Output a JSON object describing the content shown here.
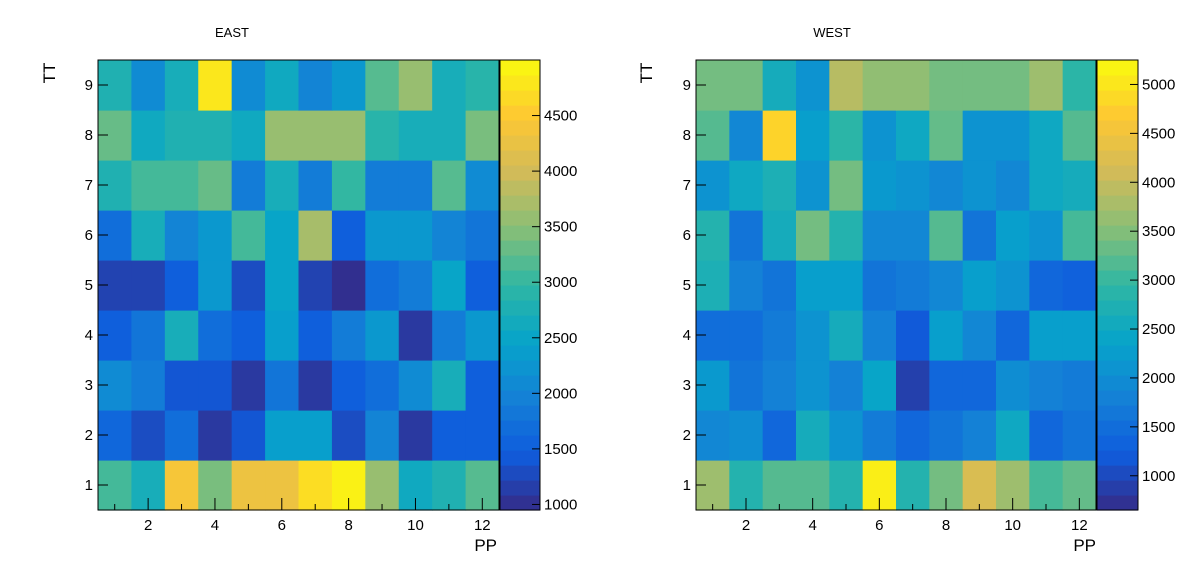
{
  "chart_data": [
    {
      "type": "heatmap",
      "title": "EAST",
      "xlabel": "PP",
      "ylabel": "TT",
      "xlim": [
        0.5,
        12.5
      ],
      "ylim": [
        0.5,
        9.5
      ],
      "x_ticks": [
        2,
        4,
        6,
        8,
        10,
        12
      ],
      "y_ticks": [
        1,
        2,
        3,
        4,
        5,
        6,
        7,
        8,
        9
      ],
      "x": [
        1,
        2,
        3,
        4,
        5,
        6,
        7,
        8,
        9,
        10,
        11,
        12
      ],
      "y": [
        1,
        2,
        3,
        4,
        5,
        6,
        7,
        8,
        9
      ],
      "colorbar": {
        "range": [
          950,
          5000
        ],
        "ticks": [
          1000,
          1500,
          2000,
          2500,
          3000,
          3500,
          4000,
          4500
        ]
      },
      "values": [
        [
          3100,
          2700,
          4400,
          3400,
          4300,
          4300,
          4700,
          4900,
          3600,
          2600,
          2800,
          3200
        ],
        [
          1600,
          1300,
          1700,
          1100,
          1400,
          2400,
          2400,
          1300,
          2000,
          1100,
          1500,
          1500
        ],
        [
          2100,
          1900,
          1400,
          1400,
          1100,
          1800,
          1100,
          1500,
          1700,
          2100,
          2700,
          1500
        ],
        [
          1500,
          1800,
          2700,
          1700,
          1500,
          2400,
          1500,
          1900,
          2300,
          1100,
          1900,
          2300
        ],
        [
          1200,
          1200,
          1500,
          2300,
          1300,
          2500,
          1200,
          1000,
          1700,
          1900,
          2500,
          1500
        ],
        [
          1700,
          2700,
          2000,
          2300,
          3100,
          2500,
          3700,
          1500,
          2300,
          2300,
          2000,
          1800
        ],
        [
          2800,
          3100,
          3100,
          3300,
          1900,
          2700,
          1900,
          3000,
          1900,
          1900,
          3200,
          2100
        ],
        [
          3300,
          2600,
          2800,
          2800,
          2600,
          3600,
          3600,
          3600,
          2900,
          2700,
          2700,
          3400
        ],
        [
          2800,
          2100,
          2700,
          4800,
          2100,
          2600,
          2000,
          2300,
          3200,
          3600,
          2700,
          2900
        ]
      ]
    },
    {
      "type": "heatmap",
      "title": "WEST",
      "xlabel": "PP",
      "ylabel": "TT",
      "xlim": [
        0.5,
        12.5
      ],
      "ylim": [
        0.5,
        9.5
      ],
      "x_ticks": [
        2,
        4,
        6,
        8,
        10,
        12
      ],
      "y_ticks": [
        1,
        2,
        3,
        4,
        5,
        6,
        7,
        8,
        9
      ],
      "x": [
        1,
        2,
        3,
        4,
        5,
        6,
        7,
        8,
        9,
        10,
        11,
        12
      ],
      "y": [
        1,
        2,
        3,
        4,
        5,
        6,
        7,
        8,
        9
      ],
      "colorbar": {
        "range": [
          650,
          5250
        ],
        "ticks": [
          1000,
          1500,
          2000,
          2500,
          3000,
          3500,
          4000,
          4500,
          5000
        ]
      },
      "values": [
        [
          3700,
          2800,
          3200,
          3200,
          2800,
          5100,
          2800,
          3400,
          4200,
          3700,
          3100,
          3300
        ],
        [
          1900,
          2000,
          1400,
          2600,
          2100,
          1700,
          1400,
          1600,
          1800,
          2500,
          1400,
          1600
        ],
        [
          2200,
          1600,
          1800,
          2100,
          1800,
          2400,
          900,
          1400,
          1400,
          2000,
          1800,
          1700
        ],
        [
          1500,
          1500,
          1700,
          2100,
          2600,
          1800,
          1200,
          2300,
          1900,
          1400,
          2300,
          2300
        ],
        [
          2700,
          1800,
          1600,
          2300,
          2300,
          1600,
          1700,
          1900,
          2300,
          2100,
          1400,
          1300
        ],
        [
          2800,
          1600,
          2600,
          3400,
          2800,
          1900,
          1900,
          3200,
          1600,
          2300,
          2100,
          3100
        ],
        [
          2100,
          2500,
          2700,
          2100,
          3400,
          2200,
          2100,
          1900,
          2100,
          1900,
          2500,
          2600
        ],
        [
          3200,
          1900,
          4800,
          2300,
          2900,
          2100,
          2500,
          3300,
          2100,
          2100,
          2500,
          3200
        ],
        [
          3400,
          3400,
          2600,
          2100,
          3900,
          3600,
          3600,
          3400,
          3400,
          3400,
          3700,
          2900
        ]
      ]
    }
  ],
  "colors": {
    "palette": [
      "#352a87",
      "#0f5cdd",
      "#1481d6",
      "#06a4ca",
      "#2eb7a4",
      "#87bf77",
      "#d1bb59",
      "#fec832",
      "#f9fb0e"
    ]
  }
}
